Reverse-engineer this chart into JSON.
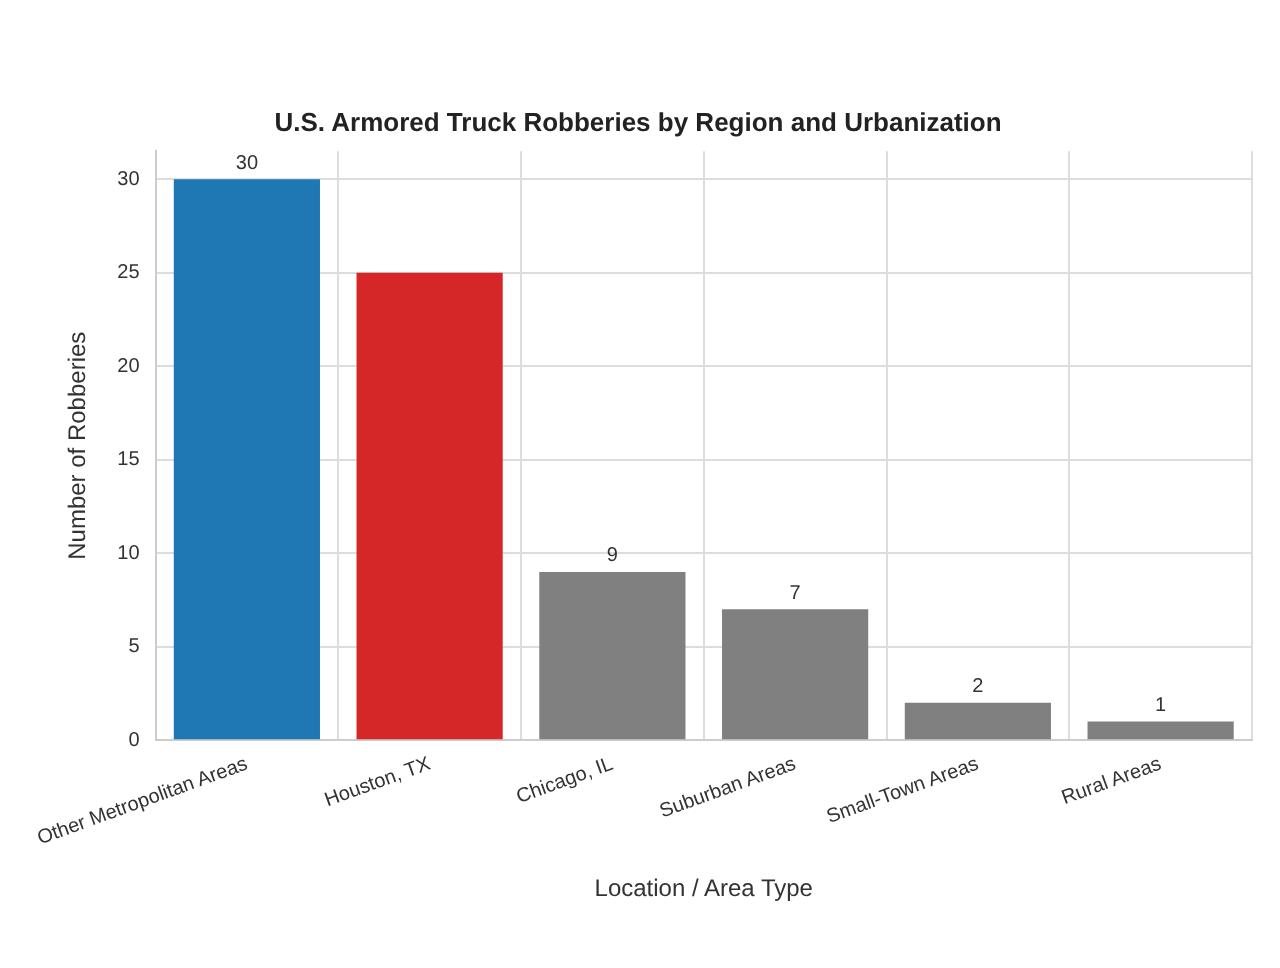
{
  "chart_data": {
    "type": "bar",
    "title": "U.S. Armored Truck Robberies by Region and Urbanization",
    "xlabel": "Location / Area Type",
    "ylabel": "Number of Robberies",
    "categories": [
      "Other Metropolitan Areas",
      "Houston, TX",
      "Chicago, IL",
      "Suburban Areas",
      "Small-Town Areas",
      "Rural Areas"
    ],
    "values": [
      30,
      25,
      9,
      7,
      2,
      1
    ],
    "colors": [
      "#1f77b4",
      "#d62728",
      "#808080",
      "#808080",
      "#808080",
      "#808080"
    ],
    "value_labels": [
      "30",
      null,
      "9",
      "7",
      "2",
      "1"
    ],
    "ylim": [
      0,
      31.5
    ],
    "yticks": [
      0,
      5,
      10,
      15,
      20,
      25,
      30
    ],
    "grid": true
  }
}
